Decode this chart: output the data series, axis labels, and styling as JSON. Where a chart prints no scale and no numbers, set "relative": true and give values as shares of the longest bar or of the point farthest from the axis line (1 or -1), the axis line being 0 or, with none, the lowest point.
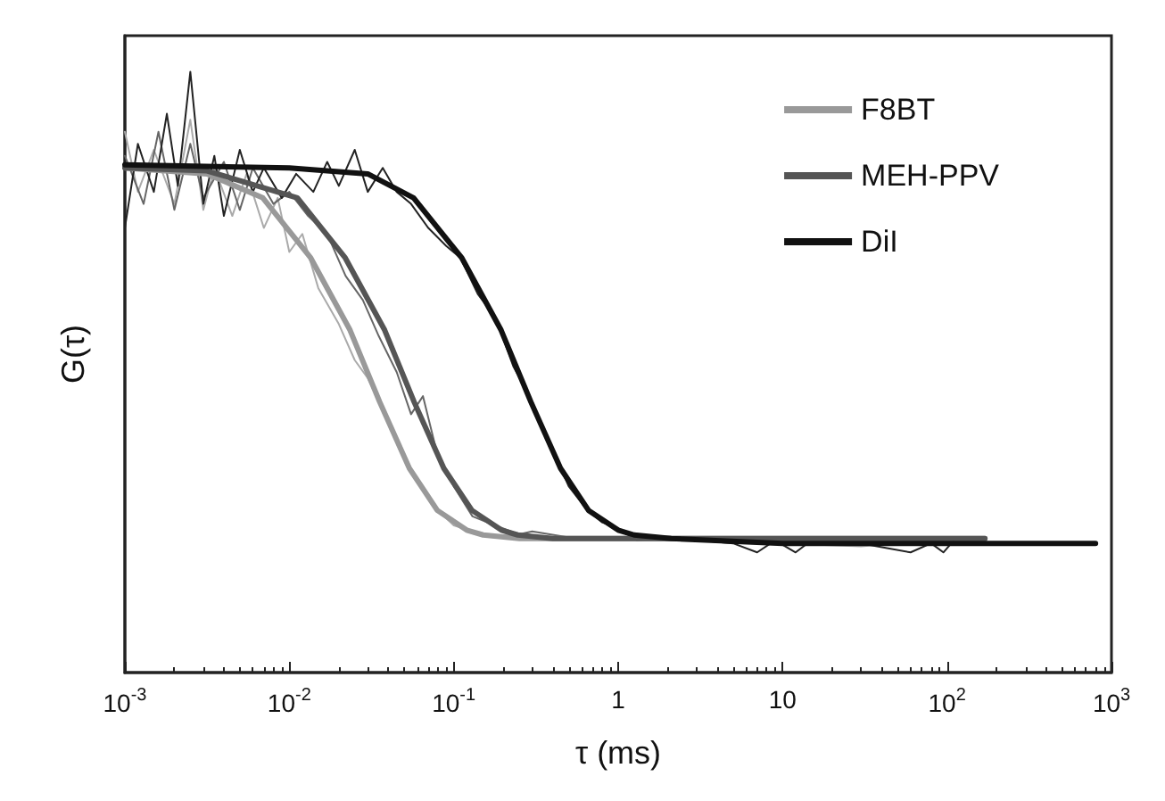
{
  "chart_data": {
    "type": "line",
    "relative": true,
    "xlabel": "τ (ms)",
    "ylabel": "G(τ)",
    "log": "x",
    "grid": false,
    "legend": "top right",
    "line_style": "solid",
    "xlim": [
      0.001,
      1000
    ],
    "xticks": [
      {
        "value": 0.001,
        "label": "10$^{-3}$"
      },
      {
        "value": 0.01,
        "label": "10$^{-2}$"
      },
      {
        "value": 0.1,
        "label": "10$^{-1}$"
      },
      1,
      10,
      {
        "value": 100,
        "label": "10$^{2}$"
      },
      {
        "value": 1000,
        "label": "10$^{3}$"
      }
    ],
    "series": [
      {
        "color": "#aaaaaa",
        "x": [
          0.001,
          0.0012,
          0.0015,
          0.002,
          0.0025,
          0.003,
          0.0035,
          0.0045,
          0.0055,
          0.007,
          0.0085,
          0.01,
          0.012,
          0.015,
          0.02,
          0.025,
          0.03,
          0.04,
          0.05,
          0.06,
          0.08,
          0.1,
          0.15,
          0.3,
          1,
          3,
          10,
          30,
          100,
          150
        ],
        "values": [
          0.9,
          0.8,
          0.87,
          0.78,
          0.92,
          0.77,
          0.84,
          0.76,
          0.83,
          0.74,
          0.79,
          0.7,
          0.73,
          0.64,
          0.58,
          0.52,
          0.49,
          0.42,
          0.36,
          0.32,
          0.27,
          0.245,
          0.23,
          0.225,
          0.222,
          0.225,
          0.215,
          0.21,
          0.222,
          0.22
        ]
      },
      {
        "color": "#666666",
        "x": [
          0.001,
          0.0013,
          0.0016,
          0.002,
          0.0025,
          0.003,
          0.004,
          0.005,
          0.006,
          0.008,
          0.01,
          0.013,
          0.017,
          0.022,
          0.028,
          0.035,
          0.045,
          0.055,
          0.065,
          0.08,
          0.1,
          0.13,
          0.16,
          0.2,
          0.25,
          0.3,
          0.5,
          1,
          3,
          10,
          30,
          100
        ],
        "values": [
          0.86,
          0.78,
          0.9,
          0.77,
          0.88,
          0.79,
          0.85,
          0.77,
          0.84,
          0.78,
          0.8,
          0.76,
          0.73,
          0.66,
          0.62,
          0.56,
          0.5,
          0.43,
          0.46,
          0.36,
          0.31,
          0.26,
          0.25,
          0.24,
          0.23,
          0.235,
          0.225,
          0.225,
          0.22,
          0.22,
          0.215,
          0.22
        ]
      },
      {
        "color": "#222222",
        "x": [
          0.001,
          0.0012,
          0.0015,
          0.0018,
          0.0021,
          0.0025,
          0.003,
          0.0035,
          0.004,
          0.005,
          0.006,
          0.007,
          0.009,
          0.011,
          0.014,
          0.017,
          0.02,
          0.025,
          0.03,
          0.037,
          0.045,
          0.055,
          0.07,
          0.09,
          0.11,
          0.14,
          0.18,
          0.23,
          0.3,
          0.4,
          0.5,
          0.65,
          0.8,
          1,
          1.3,
          2,
          5,
          7,
          9,
          12,
          15,
          30,
          60,
          80,
          95,
          110
        ],
        "values": [
          0.74,
          0.88,
          0.8,
          0.93,
          0.81,
          1,
          0.78,
          0.86,
          0.76,
          0.87,
          0.8,
          0.84,
          0.79,
          0.83,
          0.8,
          0.85,
          0.81,
          0.87,
          0.8,
          0.84,
          0.8,
          0.78,
          0.74,
          0.71,
          0.69,
          0.63,
          0.59,
          0.51,
          0.45,
          0.37,
          0.31,
          0.27,
          0.25,
          0.24,
          0.22,
          0.225,
          0.215,
          0.2,
          0.22,
          0.2,
          0.22,
          0.215,
          0.2,
          0.215,
          0.2,
          0.22
        ]
      },
      {
        "name": "F8BT",
        "color": "#999999",
        "x": [
          0.001,
          0.00316,
          0.0069,
          0.0135,
          0.0234,
          0.0355,
          0.0537,
          0.0794,
          0.12,
          0.151,
          0.251,
          1,
          10,
          170
        ],
        "values": [
          0.84,
          0.83,
          0.79,
          0.69,
          0.57,
          0.45,
          0.34,
          0.27,
          0.237,
          0.229,
          0.223,
          0.223,
          0.223,
          0.223
        ]
      },
      {
        "name": "MEH-PPV",
        "color": "#555555",
        "x": [
          0.001,
          0.00316,
          0.0112,
          0.0219,
          0.038,
          0.0575,
          0.087,
          0.129,
          0.195,
          0.245,
          0.4,
          1,
          10,
          170
        ],
        "values": [
          0.84,
          0.835,
          0.79,
          0.69,
          0.57,
          0.45,
          0.34,
          0.27,
          0.237,
          0.229,
          0.223,
          0.223,
          0.223,
          0.223
        ]
      },
      {
        "name": "DiI",
        "color": "#111111",
        "x": [
          0.001,
          0.01,
          0.03,
          0.057,
          0.112,
          0.194,
          0.295,
          0.446,
          0.66,
          1,
          1.25,
          2.1,
          10,
          800
        ],
        "values": [
          0.845,
          0.84,
          0.83,
          0.79,
          0.69,
          0.57,
          0.45,
          0.34,
          0.27,
          0.237,
          0.229,
          0.223,
          0.215,
          0.215
        ]
      }
    ]
  }
}
